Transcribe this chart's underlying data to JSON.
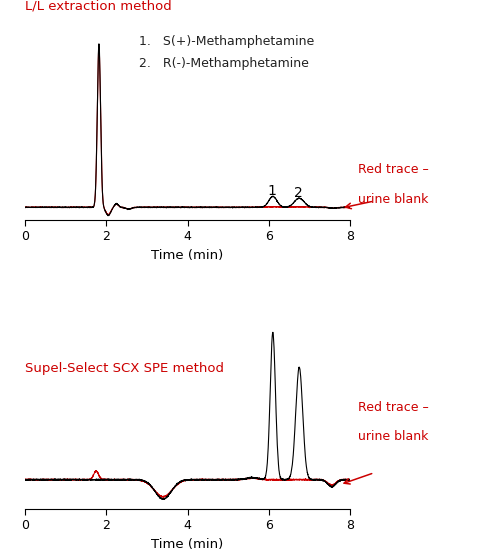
{
  "top_label": "L/L extraction method",
  "top_label_color": "#cc0000",
  "top_legend_1": "1.   S(+)-Methamphetamine",
  "top_legend_2": "2.   R(-)-Methamphetamine",
  "bottom_label": "Supel-Select SCX SPE method",
  "bottom_label_color": "#cc0000",
  "red_trace_label": "Red trace –",
  "urine_blank_label": "urine blank",
  "red_trace_color": "#cc0000",
  "black_trace_color": "#000000",
  "xlabel": "Time (min)",
  "xlim": [
    0,
    8
  ],
  "xticks": [
    0,
    2,
    4,
    6,
    8
  ],
  "background_color": "#ffffff",
  "figsize": [
    5.0,
    5.59
  ],
  "dpi": 100
}
